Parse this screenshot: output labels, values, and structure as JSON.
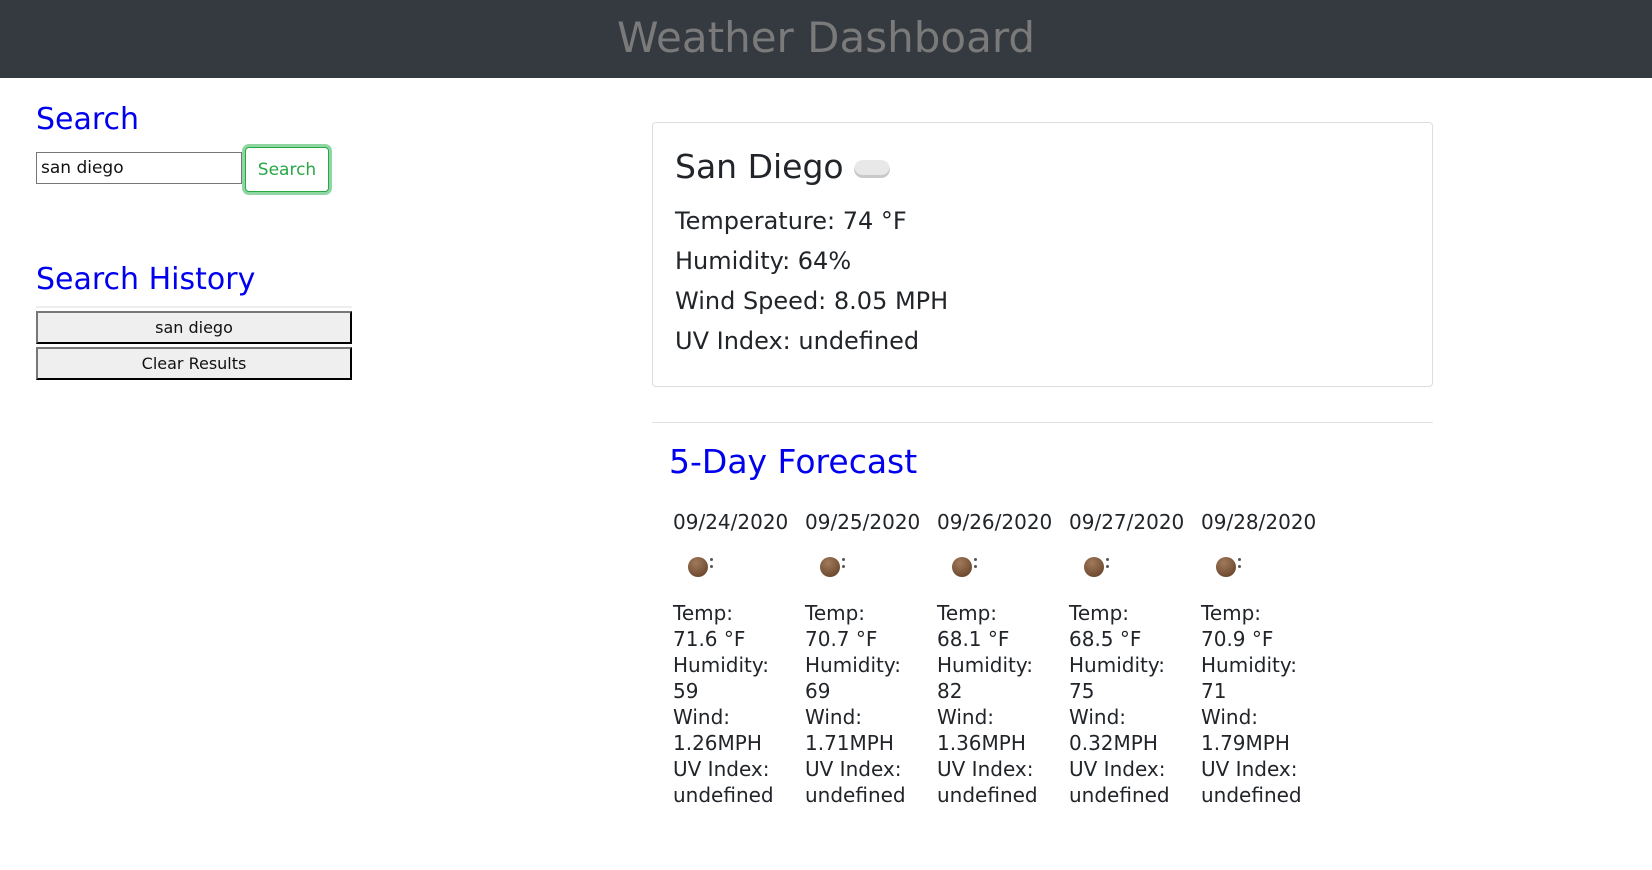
{
  "header": {
    "title": "Weather Dashboard"
  },
  "search": {
    "heading": "Search",
    "input_value": "san diego",
    "button_label": "Search"
  },
  "history": {
    "heading": "Search History",
    "items": [
      "san diego"
    ],
    "clear_label": "Clear Results"
  },
  "current": {
    "city": "San Diego",
    "icon": "cloud-icon",
    "temperature": "Temperature: 74 °F",
    "humidity": "Humidity: 64%",
    "wind": "Wind Speed: 8.05 MPH",
    "uv": "UV Index: undefined"
  },
  "forecast": {
    "heading": "5-Day Forecast",
    "days": [
      {
        "date": "09/24/2020",
        "icon": "moon-icon",
        "temp_label": "Temp:",
        "temp": "71.6 °F",
        "hum_label": "Humidity:",
        "hum": "59",
        "wind_label": "Wind:",
        "wind": "1.26MPH",
        "uv_label": "UV Index:",
        "uv": "undefined"
      },
      {
        "date": "09/25/2020",
        "icon": "moon-icon",
        "temp_label": "Temp:",
        "temp": "70.7 °F",
        "hum_label": "Humidity:",
        "hum": "69",
        "wind_label": "Wind:",
        "wind": "1.71MPH",
        "uv_label": "UV Index:",
        "uv": "undefined"
      },
      {
        "date": "09/26/2020",
        "icon": "moon-icon",
        "temp_label": "Temp:",
        "temp": "68.1 °F",
        "hum_label": "Humidity:",
        "hum": "82",
        "wind_label": "Wind:",
        "wind": "1.36MPH",
        "uv_label": "UV Index:",
        "uv": "undefined"
      },
      {
        "date": "09/27/2020",
        "icon": "moon-icon",
        "temp_label": "Temp:",
        "temp": "68.5 °F",
        "hum_label": "Humidity:",
        "hum": "75",
        "wind_label": "Wind:",
        "wind": "0.32MPH",
        "uv_label": "UV Index:",
        "uv": "undefined"
      },
      {
        "date": "09/28/2020",
        "icon": "moon-icon",
        "temp_label": "Temp:",
        "temp": "70.9 °F",
        "hum_label": "Humidity:",
        "hum": "71",
        "wind_label": "Wind:",
        "wind": "1.79MPH",
        "uv_label": "UV Index:",
        "uv": "undefined"
      }
    ]
  },
  "colors": {
    "header_bg": "#343a40",
    "heading": "#0000ee",
    "search_button": "#28a745"
  }
}
